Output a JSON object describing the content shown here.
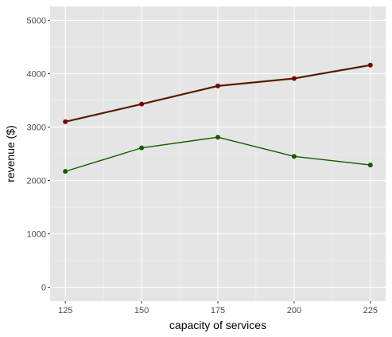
{
  "chart_data": {
    "type": "line",
    "title": "",
    "xlabel": "capacity of services",
    "ylabel": "revenue ($)",
    "x": [
      125,
      150,
      175,
      200,
      225
    ],
    "xlim": [
      120,
      230
    ],
    "ylim": [
      -260,
      5260
    ],
    "x_ticks": [
      "125",
      "150",
      "175",
      "200",
      "225"
    ],
    "y_ticks": [
      "0",
      "1000",
      "2000",
      "3000",
      "4000",
      "5000"
    ],
    "y_tick_values": [
      0,
      1000,
      2000,
      3000,
      4000,
      5000
    ],
    "x_tick_values": [
      125,
      150,
      175,
      200,
      225
    ],
    "grid": true,
    "legend": "none",
    "series": [
      {
        "values": [
          3100,
          3430,
          3770,
          3910,
          4160
        ],
        "color": "#7a0000",
        "point_color": "#7a0000",
        "secondary_color": "#145a00"
      },
      {
        "values": [
          2170,
          2610,
          2810,
          2450,
          2290
        ],
        "color": "#145a00",
        "point_color": "#145a00"
      }
    ],
    "colors": {
      "panel_background": "#e5e5e5",
      "grid_major": "#ffffff",
      "grid_minor": "#f2f2f2",
      "tick_text": "#4d4d4d",
      "axis_title": "#000000"
    }
  }
}
